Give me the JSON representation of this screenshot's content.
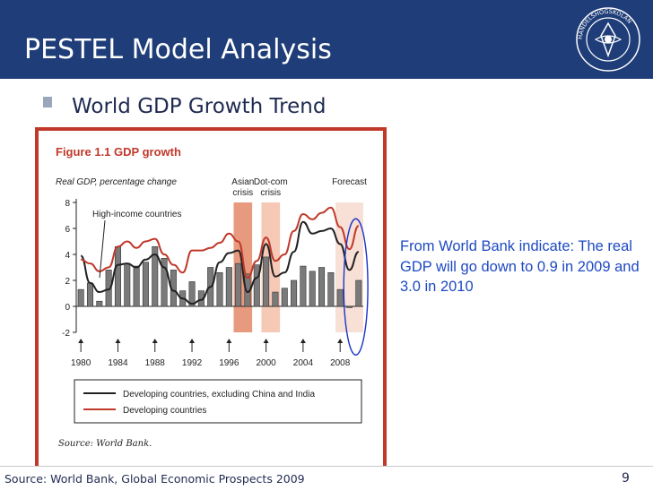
{
  "slide": {
    "title": "PESTEL Model Analysis",
    "subtitle": "World GDP Growth Trend",
    "note": "From World Bank indicate: The real GDP will go down to 0.9 in 2009 and 3.0 in 2010",
    "footer_source": "Source: World Bank, Global Economic Prospects 2009",
    "page_number": "9",
    "logo_text": "HANDELSHÖGSKOLAN I STOCKHOLM"
  },
  "colors": {
    "title_bar": "#1f3d78",
    "frame": "#c0392b",
    "note": "#1e49c2",
    "developing": "#c0392b",
    "developing_ex": "#222222",
    "bar_fill": "#7a7a7a",
    "asian_band": "#e89a7e",
    "dotcom_band": "#f6c9b6",
    "forecast_band": "#f8e0d6",
    "ellipse": "#1a35c8"
  },
  "chart_data": {
    "type": "bar",
    "title": "Figure 1.1  GDP growth",
    "ylabel": "Real GDP, percentage change",
    "xlabel": "",
    "ylim": [
      -2,
      8
    ],
    "y_ticks": [
      -2,
      0,
      2,
      4,
      6,
      8
    ],
    "x_tick_labels": [
      "1980",
      "1984",
      "1988",
      "1992",
      "1996",
      "2000",
      "2004",
      "2008"
    ],
    "categories": [
      "1980",
      "1981",
      "1982",
      "1983",
      "1984",
      "1985",
      "1986",
      "1987",
      "1988",
      "1989",
      "1990",
      "1991",
      "1992",
      "1993",
      "1994",
      "1995",
      "1996",
      "1997",
      "1998",
      "1999",
      "2000",
      "2001",
      "2002",
      "2003",
      "2004",
      "2005",
      "2006",
      "2007",
      "2008",
      "2009",
      "2010"
    ],
    "shaded_periods": [
      {
        "label": "Asian crisis",
        "start": 1997,
        "end": 1998
      },
      {
        "label": "Dot-com crisis",
        "start": 2000,
        "end": 2001
      },
      {
        "label": "Forecast",
        "start": 2008,
        "end": 2010
      }
    ],
    "annotation": "High-income countries",
    "legend": [
      "Developing countries, excluding China and India",
      "Developing countries"
    ],
    "source_note": "Source: World Bank.",
    "series": [
      {
        "name": "High-income countries",
        "kind": "bar",
        "values": [
          1.3,
          1.8,
          0.4,
          2.8,
          4.6,
          3.3,
          3.1,
          3.4,
          4.6,
          3.7,
          2.8,
          1.2,
          1.9,
          1.2,
          3.0,
          2.6,
          3.0,
          3.3,
          2.5,
          3.2,
          3.8,
          1.1,
          1.4,
          2.0,
          3.1,
          2.7,
          3.0,
          2.6,
          1.3,
          -0.1,
          2.0
        ]
      },
      {
        "name": "Developing countries, excluding China and India",
        "kind": "line",
        "values": [
          3.9,
          1.8,
          1.1,
          1.3,
          3.2,
          3.3,
          3.0,
          3.6,
          4.0,
          3.0,
          1.2,
          0.6,
          0.2,
          0.5,
          1.5,
          3.4,
          4.1,
          4.3,
          1.1,
          2.2,
          4.8,
          2.3,
          2.6,
          4.2,
          6.5,
          5.6,
          5.8,
          6.0,
          4.8,
          2.8,
          4.2
        ]
      },
      {
        "name": "Developing countries",
        "kind": "line",
        "values": [
          3.6,
          3.3,
          2.7,
          3.0,
          4.6,
          5.0,
          4.5,
          5.0,
          5.2,
          4.0,
          3.2,
          2.6,
          4.3,
          4.3,
          4.5,
          4.9,
          5.6,
          5.0,
          2.2,
          3.5,
          5.3,
          3.5,
          4.0,
          5.8,
          7.1,
          6.7,
          7.2,
          7.6,
          6.1,
          4.4,
          6.2
        ]
      }
    ]
  }
}
